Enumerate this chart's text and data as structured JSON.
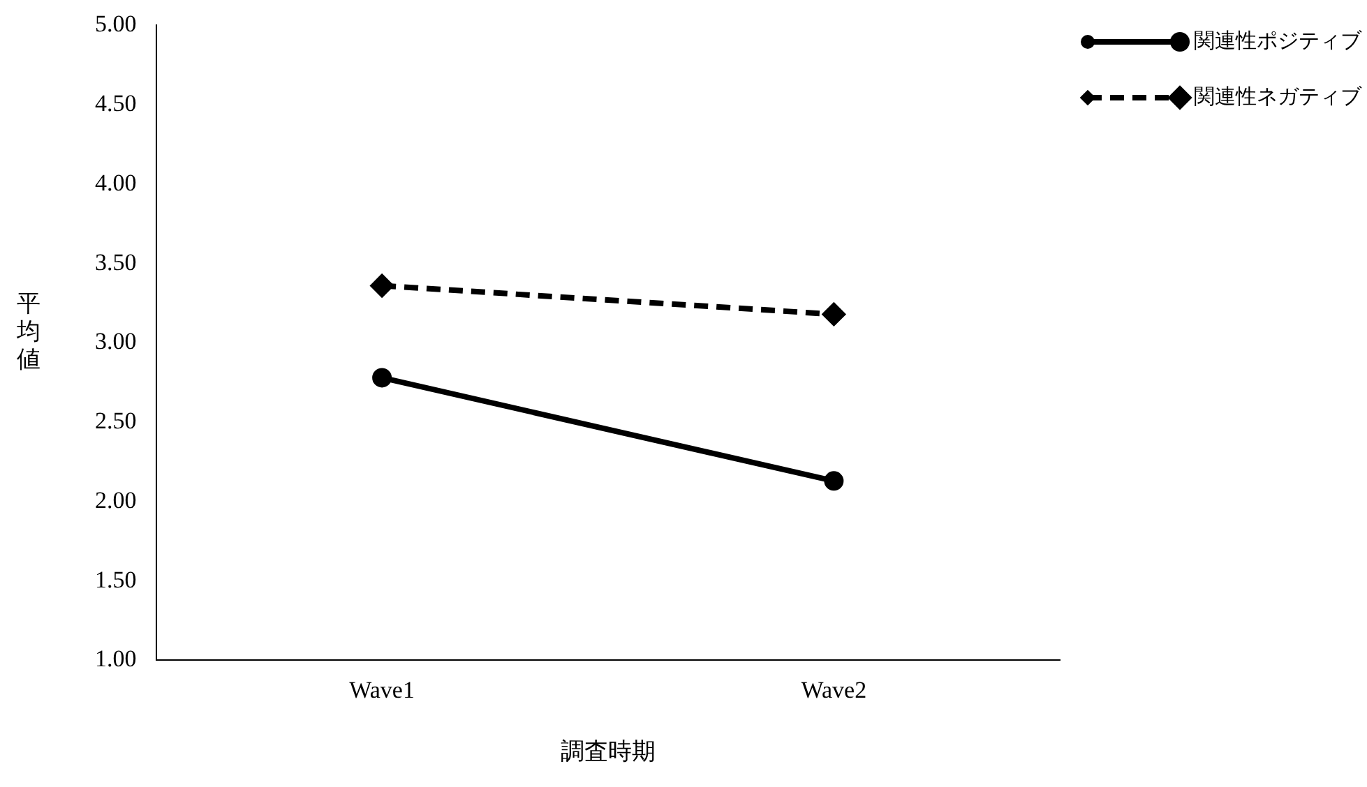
{
  "chart_data": {
    "type": "line",
    "xlabel": "調査時期",
    "ylabel": "平均値",
    "categories": [
      "Wave1",
      "Wave2"
    ],
    "series": [
      {
        "name": "関連性ポジティブ",
        "color": "#000000",
        "values": [
          2.78,
          2.13
        ],
        "marker": "circle",
        "line_style": "solid"
      },
      {
        "name": "関連性ネガティブ",
        "color": "#000000",
        "values": [
          3.36,
          3.18
        ],
        "marker": "diamond",
        "line_style": "dashed"
      }
    ],
    "ylim": [
      1,
      5
    ],
    "yticks": [
      {
        "value": 1,
        "label": "1.00"
      },
      {
        "value": 1.5,
        "label": "1.50"
      },
      {
        "value": 2,
        "label": "2.00"
      },
      {
        "value": 2.5,
        "label": "2.50"
      },
      {
        "value": 3,
        "label": "3.00"
      },
      {
        "value": 3.5,
        "label": "3.50"
      },
      {
        "value": 4,
        "label": "4.00"
      },
      {
        "value": 4.5,
        "label": "4.50"
      },
      {
        "value": 5,
        "label": "5.00"
      }
    ],
    "grid": false,
    "legend": "top right"
  }
}
